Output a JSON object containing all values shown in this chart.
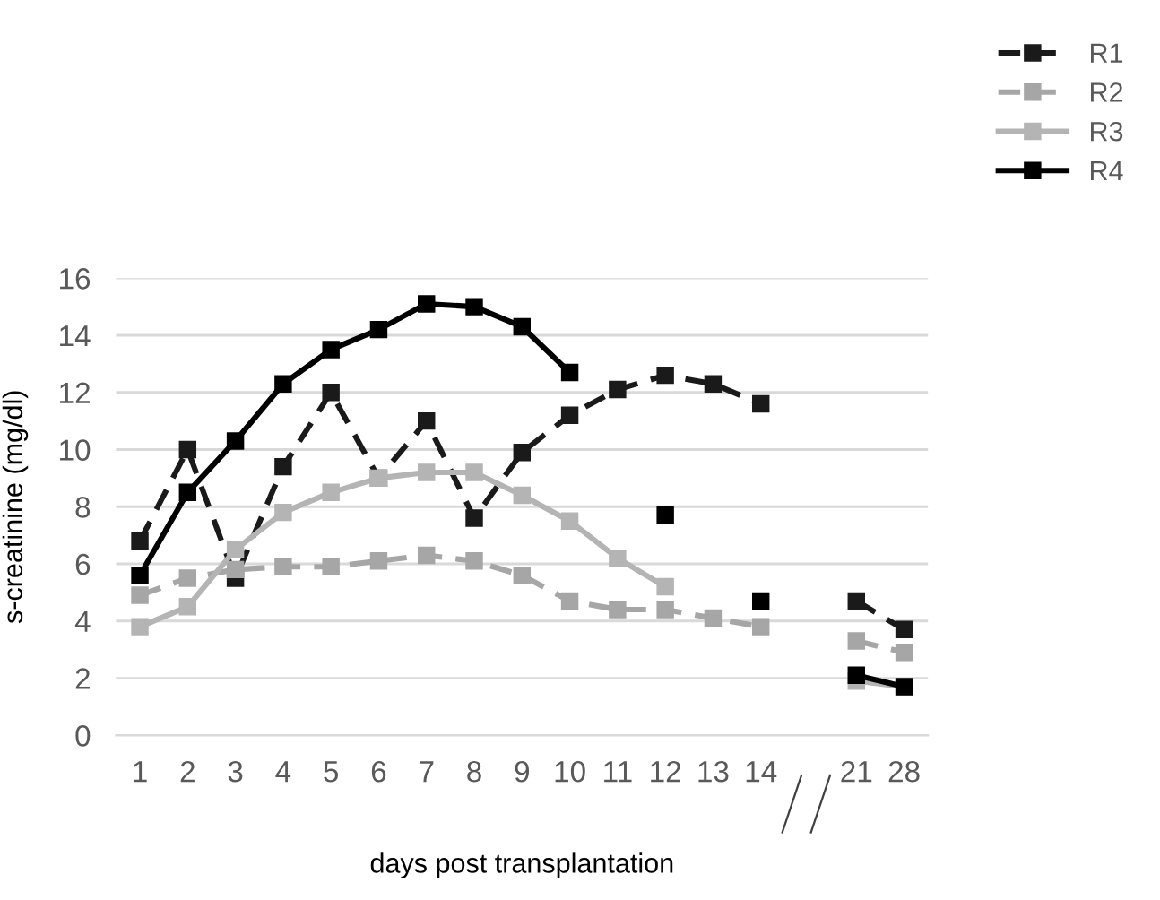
{
  "chart_data": {
    "type": "line",
    "xlabel": "days post transplantation",
    "ylabel": "s-creatinine (mg/dl)",
    "categories": [
      "1",
      "2",
      "3",
      "4",
      "5",
      "6",
      "7",
      "8",
      "9",
      "10",
      "11",
      "12",
      "13",
      "14",
      null,
      "21",
      "28"
    ],
    "ylim": [
      0,
      16
    ],
    "yticks": [
      0,
      2,
      4,
      6,
      8,
      10,
      12,
      14,
      16
    ],
    "grid": "y",
    "legend": "top right",
    "marker": "square",
    "series": [
      {
        "name": "R1",
        "color": "#1a1a1a",
        "line_style": "dashed",
        "values": [
          6.8,
          10.0,
          5.5,
          9.4,
          12.0,
          9.0,
          11.0,
          7.6,
          9.9,
          11.2,
          12.1,
          12.6,
          12.3,
          11.6,
          null,
          4.7,
          3.7
        ]
      },
      {
        "name": "R2",
        "color": "#a6a6a6",
        "line_style": "dashed",
        "values": [
          4.9,
          5.5,
          5.8,
          5.9,
          5.9,
          6.1,
          6.3,
          6.1,
          5.6,
          4.7,
          4.4,
          4.4,
          4.1,
          3.8,
          null,
          3.3,
          2.9
        ]
      },
      {
        "name": "R3",
        "color": "#b4b4b4",
        "line_style": "solid",
        "values": [
          3.8,
          4.5,
          6.5,
          7.8,
          8.5,
          9.0,
          9.2,
          9.2,
          8.4,
          7.5,
          6.2,
          5.2,
          null,
          null,
          null,
          1.9,
          1.7
        ]
      },
      {
        "name": "R4",
        "color": "#000000",
        "line_style": "solid",
        "values": [
          5.6,
          8.5,
          10.3,
          12.3,
          13.5,
          14.2,
          15.1,
          15.0,
          14.3,
          12.7,
          null,
          7.7,
          null,
          4.7,
          null,
          2.1,
          1.7
        ]
      }
    ]
  }
}
